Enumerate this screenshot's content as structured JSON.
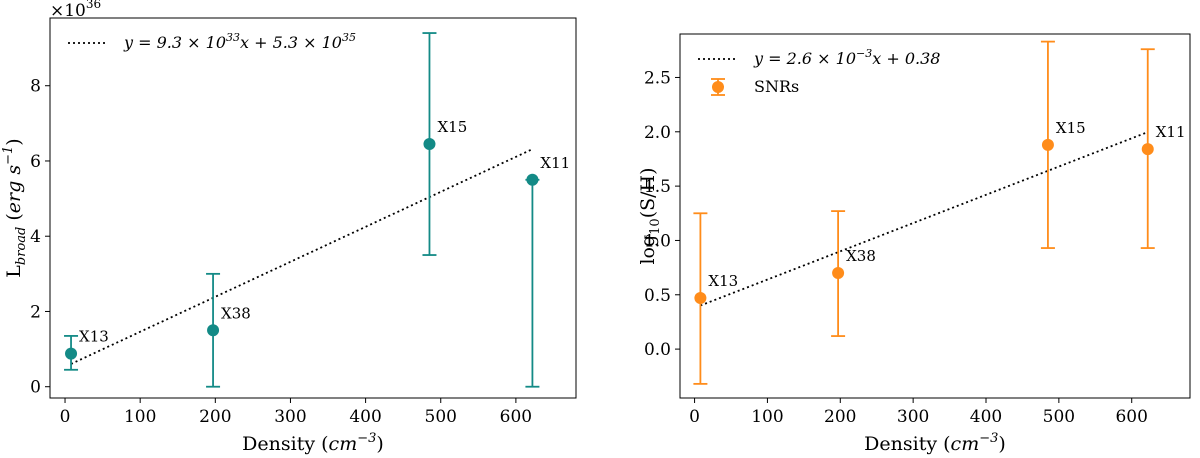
{
  "chart_data": [
    {
      "type": "scatter",
      "xlabel_prefix": "Density",
      "xlabel_unit": "cm",
      "xlabel_unit_exp": "−3",
      "ylabel_base": "L",
      "ylabel_sub": "broad",
      "ylabel_unit": "erg s",
      "ylabel_unit_exp": "−1",
      "y_multiplier_base": "×10",
      "y_multiplier_exp": "36",
      "xlim": [
        -20,
        680
      ],
      "ylim": [
        -0.3,
        9.8
      ],
      "xticks": [
        0,
        100,
        200,
        300,
        400,
        500,
        600
      ],
      "yticks": [
        0,
        2,
        4,
        6,
        8
      ],
      "color": "#138a86",
      "points": [
        {
          "label": "X13",
          "x": 8,
          "y": 0.88,
          "err_low": 0.45,
          "err_high": 1.35
        },
        {
          "label": "X38",
          "x": 197,
          "y": 1.5,
          "err_low": 0.0,
          "err_high": 3.0
        },
        {
          "label": "X15",
          "x": 485,
          "y": 6.45,
          "err_low": 3.5,
          "err_high": 9.4
        },
        {
          "label": "X11",
          "x": 622,
          "y": 5.5,
          "err_low": 0.0,
          "err_high": 5.5
        }
      ],
      "fit": {
        "slope": 0.0093,
        "intercept": 0.53,
        "x_range": [
          8,
          622
        ]
      },
      "legend": [
        {
          "type": "fit",
          "text_prefix": "y = 9.3 × 10",
          "text_exp": "33",
          "text_suffix": "x + 5.3 × 10",
          "text_exp2": "35"
        }
      ]
    },
    {
      "type": "scatter",
      "xlabel_prefix": "Density",
      "xlabel_unit": "cm",
      "xlabel_unit_exp": "−3",
      "ylabel_base": "log",
      "ylabel_sub": "10",
      "ylabel_rest": "(S/H)",
      "xlim": [
        -20,
        680
      ],
      "ylim": [
        -0.45,
        2.9
      ],
      "xticks": [
        0,
        100,
        200,
        300,
        400,
        500,
        600
      ],
      "yticks": [
        0.0,
        0.5,
        1.0,
        1.5,
        2.0,
        2.5
      ],
      "color": "#ff8c1a",
      "points": [
        {
          "label": "X13",
          "x": 8,
          "y": 0.47,
          "err_low": -0.32,
          "err_high": 1.25
        },
        {
          "label": "X38",
          "x": 197,
          "y": 0.7,
          "err_low": 0.12,
          "err_high": 1.27
        },
        {
          "label": "X15",
          "x": 485,
          "y": 1.88,
          "err_low": 0.93,
          "err_high": 2.83
        },
        {
          "label": "X11",
          "x": 622,
          "y": 1.84,
          "err_low": 0.93,
          "err_high": 2.76
        }
      ],
      "fit": {
        "slope": 0.0026,
        "intercept": 0.38,
        "x_range": [
          8,
          622
        ]
      },
      "legend": [
        {
          "type": "fit",
          "text_prefix": "y = 2.6 × 10",
          "text_exp": "−3",
          "text_suffix": "x + 0.38"
        },
        {
          "type": "marker",
          "text": "SNRs"
        }
      ]
    }
  ]
}
